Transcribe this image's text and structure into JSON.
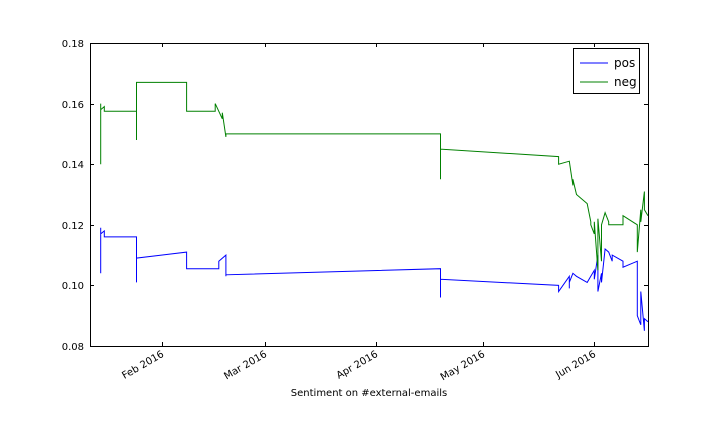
{
  "chart_data": {
    "type": "line",
    "title": "",
    "xlabel": "Sentiment on #external-emails",
    "ylabel": "",
    "xlim": [
      "2016-01-12",
      "2016-06-16"
    ],
    "ylim": [
      0.08,
      0.18
    ],
    "yticks": [
      0.08,
      0.1,
      0.12,
      0.14,
      0.16,
      0.18
    ],
    "ytick_labels": [
      "0.08",
      "0.10",
      "0.12",
      "0.14",
      "0.16",
      "0.18"
    ],
    "xticks": [
      "2016-02-01",
      "2016-03-01",
      "2016-04-01",
      "2016-05-01",
      "2016-06-01"
    ],
    "xtick_labels": [
      "Feb 2016",
      "Mar 2016",
      "Apr 2016",
      "May 2016",
      "Jun 2016"
    ],
    "grid": false,
    "legend": "top-right",
    "series": [
      {
        "name": "pos",
        "color": "#0000ff",
        "x": [
          "2016-01-15",
          "2016-01-15",
          "2016-01-15",
          "2016-01-15",
          "2016-01-16",
          "2016-01-16",
          "2016-01-17",
          "2016-01-25",
          "2016-01-25",
          "2016-01-25",
          "2016-02-08",
          "2016-02-08",
          "2016-02-17",
          "2016-02-17",
          "2016-02-19",
          "2016-02-19",
          "2016-02-19",
          "2016-04-19",
          "2016-04-19",
          "2016-04-19",
          "2016-05-22",
          "2016-05-22",
          "2016-05-25",
          "2016-05-25",
          "2016-05-25",
          "2016-05-25",
          "2016-05-26",
          "2016-05-27",
          "2016-05-30",
          "2016-05-31",
          "2016-06-01",
          "2016-06-01",
          "2016-06-02",
          "2016-06-02",
          "2016-06-03",
          "2016-06-03",
          "2016-06-04",
          "2016-06-05",
          "2016-06-06",
          "2016-06-06",
          "2016-06-09",
          "2016-06-09",
          "2016-06-13",
          "2016-06-13",
          "2016-06-14",
          "2016-06-14",
          "2016-06-15",
          "2016-06-15",
          "2016-06-16"
        ],
        "y": [
          0.109,
          0.104,
          0.119,
          0.117,
          0.118,
          0.116,
          0.116,
          0.116,
          0.101,
          0.109,
          0.111,
          0.1055,
          0.1055,
          0.108,
          0.11,
          0.103,
          0.1035,
          0.1055,
          0.096,
          0.102,
          0.1,
          0.098,
          0.103,
          0.099,
          0.1,
          0.101,
          0.104,
          0.103,
          0.101,
          0.103,
          0.105,
          0.102,
          0.11,
          0.098,
          0.104,
          0.101,
          0.112,
          0.111,
          0.108,
          0.11,
          0.108,
          0.106,
          0.108,
          0.09,
          0.087,
          0.098,
          0.085,
          0.089,
          0.088
        ]
      },
      {
        "name": "neg",
        "color": "#008000",
        "x": [
          "2016-01-15",
          "2016-01-15",
          "2016-01-15",
          "2016-01-15",
          "2016-01-16",
          "2016-01-16",
          "2016-01-17",
          "2016-01-25",
          "2016-01-25",
          "2016-01-25",
          "2016-02-08",
          "2016-02-08",
          "2016-02-16",
          "2016-02-16",
          "2016-02-18",
          "2016-02-18",
          "2016-02-19",
          "2016-02-19",
          "2016-04-19",
          "2016-04-19",
          "2016-04-19",
          "2016-05-22",
          "2016-05-22",
          "2016-05-25",
          "2016-05-25",
          "2016-05-26",
          "2016-05-26",
          "2016-05-27",
          "2016-05-30",
          "2016-05-31",
          "2016-05-31",
          "2016-06-01",
          "2016-06-01",
          "2016-06-02",
          "2016-06-02",
          "2016-06-03",
          "2016-06-03",
          "2016-06-04",
          "2016-06-05",
          "2016-06-05",
          "2016-06-09",
          "2016-06-09",
          "2016-06-13",
          "2016-06-13",
          "2016-06-14",
          "2016-06-14",
          "2016-06-15",
          "2016-06-15",
          "2016-06-16"
        ],
        "y": [
          0.145,
          0.14,
          0.16,
          0.158,
          0.159,
          0.1575,
          0.1575,
          0.1575,
          0.148,
          0.167,
          0.167,
          0.1575,
          0.1575,
          0.16,
          0.155,
          0.157,
          0.149,
          0.15,
          0.15,
          0.135,
          0.145,
          0.1425,
          0.14,
          0.141,
          0.141,
          0.133,
          0.135,
          0.13,
          0.127,
          0.121,
          0.12,
          0.117,
          0.121,
          0.105,
          0.122,
          0.108,
          0.12,
          0.124,
          0.121,
          0.12,
          0.12,
          0.123,
          0.12,
          0.111,
          0.125,
          0.121,
          0.131,
          0.125,
          0.123
        ]
      }
    ]
  }
}
